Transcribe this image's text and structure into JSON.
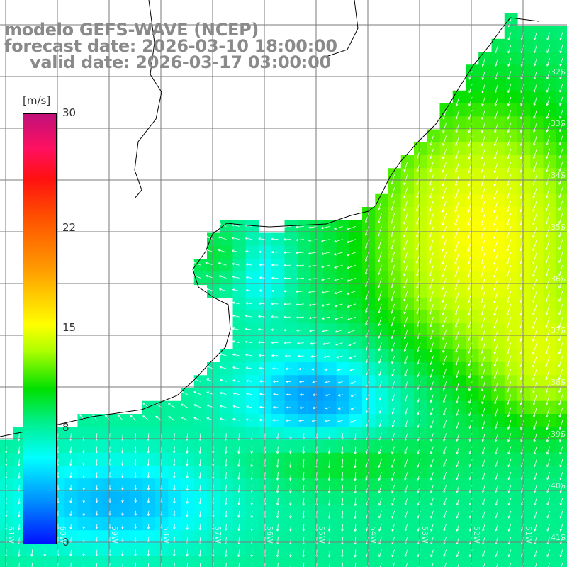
{
  "title": {
    "line1": "modelo GEFS-WAVE (NCEP)",
    "line2": "forecast date: 2026-03-10 18:00:00",
    "line3": "valid date: 2026-03-17 03:00:00"
  },
  "colorbar": {
    "unit": "[m/s]",
    "ticks": [
      {
        "label": "30",
        "value": 30
      },
      {
        "label": "22",
        "value": 22
      },
      {
        "label": "15",
        "value": 15
      },
      {
        "label": "8",
        "value": 8
      },
      {
        "label": "0",
        "value": 0
      }
    ],
    "colors": [
      "#0010ff",
      "#0090ff",
      "#00ffff",
      "#00f090",
      "#00e000",
      "#b0ff00",
      "#ffff00",
      "#ff9a00",
      "#ff5000",
      "#ff1010",
      "#c0107a"
    ]
  },
  "lat_labels": [
    "32S",
    "33S",
    "34S",
    "35S",
    "36S",
    "37S",
    "38S",
    "39S",
    "40S",
    "41S"
  ],
  "lon_labels": [
    "61W",
    "60W",
    "59W",
    "58W",
    "57W",
    "56W",
    "55W",
    "54W",
    "53W",
    "52W",
    "51W"
  ],
  "colors": {
    "land": "#ffffff",
    "coast": "#000000",
    "grid": "#7a7a7a",
    "arrow": "#ffffff"
  }
}
